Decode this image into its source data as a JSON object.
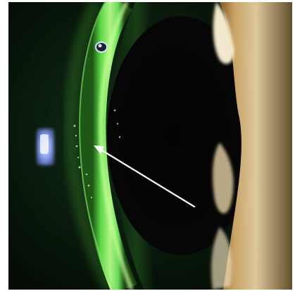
{
  "image": {
    "subject": "slit-lamp-eye-photograph",
    "colors": {
      "background": "#071207",
      "lens_green": "#5fe04a",
      "lens_bright": "#b8ff8a",
      "pupil": "#050505",
      "iris_warm": "#d8b070",
      "arrow": "#ffffff",
      "reflection_blue": "#8ea8ff"
    },
    "annotations": [
      {
        "type": "arrow",
        "color": "#ffffff"
      }
    ]
  }
}
